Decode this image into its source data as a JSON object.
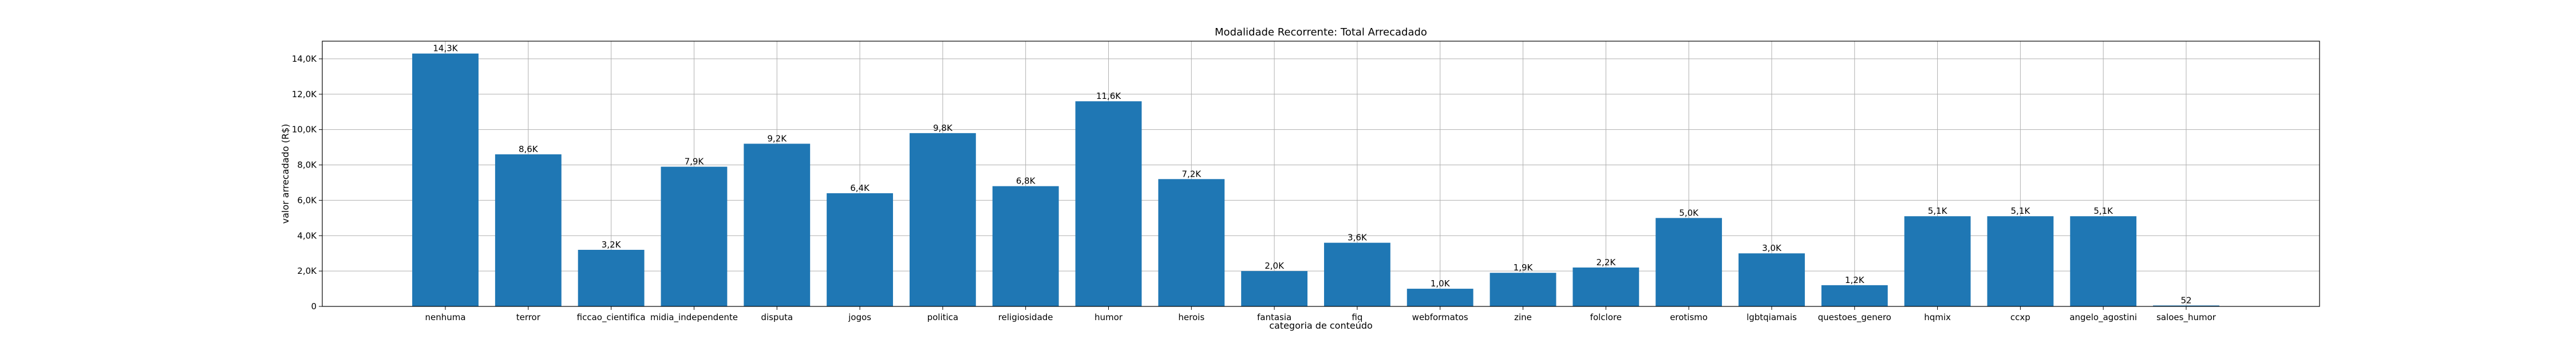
{
  "chart_data": {
    "type": "bar",
    "title": "Modalidade Recorrente: Total Arrecadado",
    "xlabel": "categoria de conteúdo",
    "ylabel": "valor arrecadado (R$)",
    "ylim": [
      0,
      15000
    ],
    "yticks": [
      0,
      2000,
      4000,
      6000,
      8000,
      10000,
      12000,
      14000
    ],
    "ytick_labels": [
      "0",
      "2,0K",
      "4,0K",
      "6,0K",
      "8,0K",
      "10,0K",
      "12,0K",
      "14,0K"
    ],
    "grid": true,
    "bar_color": "#1f77b4",
    "categories": [
      "nenhuma",
      "terror",
      "ficcao_cientifica",
      "midia_independente",
      "disputa",
      "jogos",
      "politica",
      "religiosidade",
      "humor",
      "herois",
      "fantasia",
      "fiq",
      "webformatos",
      "zine",
      "folclore",
      "erotismo",
      "lgbtqiamais",
      "questoes_genero",
      "hqmix",
      "ccxp",
      "angelo_agostini",
      "saloes_humor"
    ],
    "values": [
      14300,
      8600,
      3200,
      7900,
      9200,
      6400,
      9800,
      6800,
      11600,
      7200,
      2000,
      3600,
      1000,
      1900,
      2200,
      5000,
      3000,
      1200,
      5100,
      5100,
      5100,
      52
    ],
    "value_labels": [
      "14,3K",
      "8,6K",
      "3,2K",
      "7,9K",
      "9,2K",
      "6,4K",
      "9,8K",
      "6,8K",
      "11,6K",
      "7,2K",
      "2,0K",
      "3,6K",
      "1,0K",
      "1,9K",
      "2,2K",
      "5,0K",
      "3,0K",
      "1,2K",
      "5,1K",
      "5,1K",
      "5,1K",
      "52"
    ]
  }
}
